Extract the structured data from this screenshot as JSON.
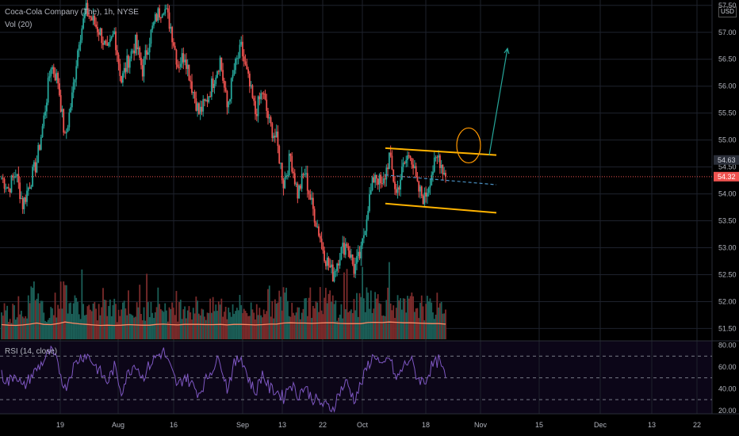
{
  "header": {
    "title": "Coca-Cola Company (The), 1h, NYSE",
    "volume_label": "Vol (20)",
    "rsi_label": "RSI (14, close)",
    "currency": "USD"
  },
  "colors": {
    "up": "#26a69a",
    "down": "#ef5350",
    "volume_ma": "#ff8a65",
    "rsi_line": "#7e57c2",
    "channel": "#ffb300",
    "projection_arrow": "#26a69a",
    "circle": "#ff9800",
    "last_price_tag": "#ef5350",
    "grid": "#1e222d"
  },
  "chart_data": [
    {
      "type": "line",
      "name": "price",
      "x_ticks": [
        "19",
        "Aug",
        "16",
        "Sep",
        "13",
        "22",
        "Oct",
        "18",
        "Nov",
        "15",
        "Dec",
        "13",
        "22"
      ],
      "y_ticks": [
        51.5,
        52.0,
        52.5,
        53.0,
        53.5,
        54.0,
        54.5,
        55.0,
        55.5,
        56.0,
        56.5,
        57.0,
        57.5
      ],
      "ylim": [
        51.3,
        57.6
      ],
      "series": [
        {
          "values": [
            54.3,
            54.1,
            54.4,
            53.8,
            54.2,
            54.6,
            55.4,
            56.4,
            56.1,
            55.0,
            55.8,
            56.9,
            57.4,
            57.2,
            57.0,
            56.6,
            57.0,
            56.1,
            56.5,
            56.8,
            56.3,
            56.9,
            57.3,
            57.5,
            57.1,
            56.4,
            56.6,
            56.0,
            55.5,
            55.7,
            56.1,
            56.5,
            55.6,
            56.3,
            56.7,
            56.1,
            55.5,
            55.9,
            55.3,
            55.0,
            54.2,
            54.7,
            54.0,
            54.4,
            53.8,
            53.3,
            52.8,
            52.5,
            52.9,
            53.1,
            52.6,
            52.9,
            53.8,
            54.4,
            54.1,
            54.7,
            54.0,
            54.5,
            54.8,
            54.1,
            53.9,
            54.4,
            54.7,
            54.32
          ]
        }
      ],
      "last_price": 54.32,
      "last_high": 54.63,
      "annotations": {
        "channel_upper": {
          "x": [
            "Oct 6",
            "Oct 29"
          ],
          "y": [
            54.85,
            54.72
          ]
        },
        "channel_lower": {
          "x": [
            "Oct 6",
            "Oct 29"
          ],
          "y": [
            53.82,
            53.65
          ]
        },
        "midline_dashed": {
          "x": [
            "Oct 6",
            "Oct 29"
          ],
          "y": [
            54.35,
            54.17
          ]
        },
        "breakout_arrow": {
          "x": [
            "Oct 28",
            "Nov 1"
          ],
          "y": [
            54.72,
            56.7
          ]
        },
        "circle": {
          "x": "Oct 25",
          "y": 54.9
        }
      }
    },
    {
      "type": "bar",
      "name": "volume",
      "values": [
        60,
        45,
        55,
        50,
        65,
        95,
        48,
        52,
        70,
        90,
        58,
        62,
        55,
        48,
        52,
        60,
        45,
        58,
        68,
        50,
        46,
        55,
        72,
        60,
        48,
        52,
        66,
        56,
        60,
        50,
        55,
        62,
        48,
        66,
        58,
        52,
        50,
        60,
        70,
        55,
        82,
        66,
        58,
        64,
        60,
        68,
        72,
        66,
        50,
        58,
        60,
        62,
        88,
        70,
        64,
        74,
        60,
        55,
        64,
        60,
        58,
        55,
        62,
        50
      ],
      "ma_values": [
        56,
        54,
        53,
        55,
        58,
        62,
        57,
        56,
        60,
        66,
        62,
        59,
        57,
        55,
        53,
        54,
        53,
        54,
        56,
        55,
        54,
        54,
        57,
        58,
        56,
        55,
        57,
        57,
        57,
        56,
        56,
        57,
        55,
        57,
        57,
        56,
        55,
        56,
        58,
        58,
        62,
        63,
        62,
        62,
        61,
        62,
        63,
        63,
        61,
        60,
        60,
        60,
        64,
        65,
        64,
        66,
        65,
        63,
        63,
        62,
        61,
        60,
        60,
        58
      ]
    },
    {
      "type": "line",
      "name": "rsi",
      "y_ticks": [
        20.0,
        40.0,
        60.0,
        80.0
      ],
      "ylim": [
        17,
        84
      ],
      "bands": [
        30,
        50,
        70
      ],
      "values": [
        52,
        46,
        55,
        40,
        50,
        58,
        66,
        75,
        62,
        40,
        58,
        68,
        72,
        64,
        55,
        46,
        60,
        38,
        55,
        64,
        50,
        62,
        70,
        74,
        58,
        42,
        52,
        44,
        36,
        48,
        60,
        68,
        40,
        62,
        70,
        50,
        36,
        54,
        40,
        38,
        32,
        46,
        34,
        42,
        32,
        28,
        24,
        22,
        38,
        46,
        30,
        44,
        62,
        72,
        58,
        70,
        48,
        60,
        68,
        50,
        46,
        60,
        66,
        50
      ]
    }
  ]
}
